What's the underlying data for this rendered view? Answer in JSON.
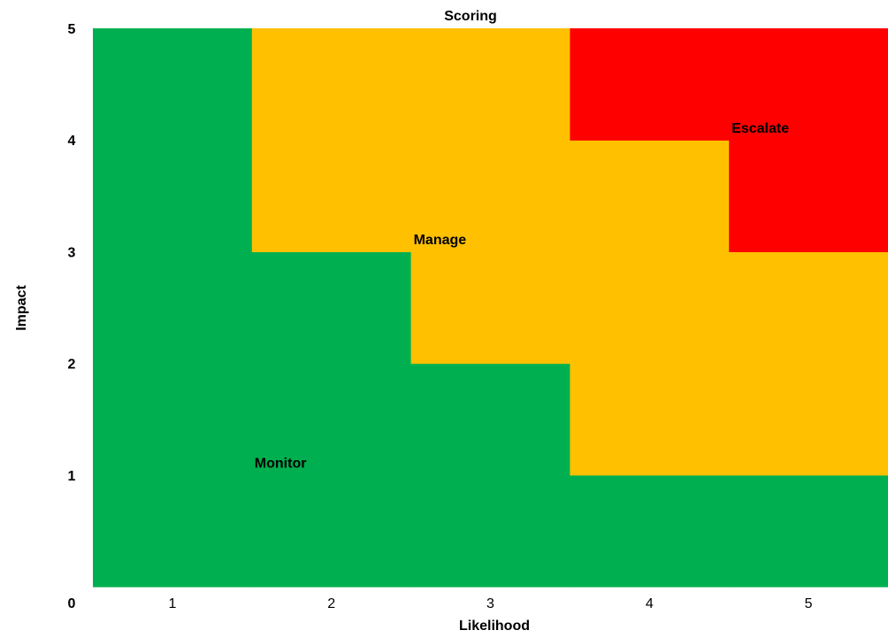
{
  "chart_data": {
    "type": "area",
    "title": "Scoring",
    "xlabel": "Likelihood",
    "ylabel": "Impact",
    "x_ticks": [
      "1",
      "2",
      "3",
      "4",
      "5"
    ],
    "y_ticks": [
      "0",
      "1",
      "2",
      "3",
      "4",
      "5"
    ],
    "xlim": [
      0.5,
      5.5
    ],
    "ylim": [
      0.5,
      5.5
    ],
    "grid": false,
    "colors": {
      "Monitor": "#00B050",
      "Manage": "#FFC000",
      "Escalate": "#FF0000"
    },
    "series": [
      {
        "name": "Monitor",
        "values": [
          5,
          3,
          2,
          1,
          1
        ]
      },
      {
        "name": "Manage",
        "values": [
          0,
          2,
          3,
          3,
          2
        ]
      },
      {
        "name": "Escalate",
        "values": [
          0,
          0,
          0,
          1,
          2
        ]
      }
    ],
    "zone_labels": [
      {
        "text": "Monitor",
        "x": 1.5,
        "y": 1.6
      },
      {
        "text": "Manage",
        "x": 2.5,
        "y": 3.6
      },
      {
        "text": "Escalate",
        "x": 4.5,
        "y": 4.6
      }
    ]
  }
}
